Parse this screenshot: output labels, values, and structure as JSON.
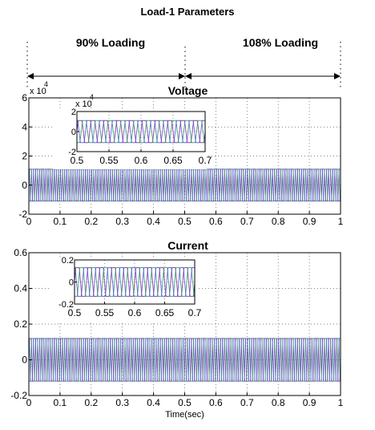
{
  "figure": {
    "title": "Load-1 Parameters",
    "region_left_label": "90% Loading",
    "region_right_label": "108% Loading"
  },
  "colors": {
    "phase_a": "#7a2e8f",
    "phase_b": "#2e9a6a",
    "phase_c": "#5050d8",
    "axis": "#000000",
    "grid": "#555555"
  },
  "chart_data": [
    {
      "type": "line",
      "title": "Voltage",
      "xlabel": "",
      "ylabel": "",
      "y_multiplier": "x 10",
      "y_multiplier_exp": "4",
      "xlim": [
        0,
        1
      ],
      "ylim": [
        -2,
        6
      ],
      "xticks": [
        "0",
        "0.1",
        "0.2",
        "0.3",
        "0.4",
        "0.5",
        "0.6",
        "0.7",
        "0.8",
        "0.9",
        "1"
      ],
      "yticks": [
        "-2",
        "0",
        "2",
        "4",
        "6"
      ],
      "grid": true,
      "series_amplitude": 1.1,
      "signal_center": 0,
      "phases": 3,
      "inset": {
        "y_multiplier": "x 10",
        "y_multiplier_exp": "4",
        "xlim": [
          0.5,
          0.7
        ],
        "ylim": [
          -2,
          2
        ],
        "xticks": [
          "0.5",
          "0.55",
          "0.6",
          "0.65",
          "0.7"
        ],
        "yticks": [
          "-2",
          "0",
          "2"
        ],
        "amplitude": 1.1
      }
    },
    {
      "type": "line",
      "title": "Current",
      "xlabel": "Time(sec)",
      "ylabel": "",
      "xlim": [
        0,
        1
      ],
      "ylim": [
        -0.2,
        0.6
      ],
      "xticks": [
        "0",
        "0.1",
        "0.2",
        "0.3",
        "0.4",
        "0.5",
        "0.6",
        "0.7",
        "0.8",
        "0.9",
        "1"
      ],
      "yticks": [
        "-0.2",
        "0",
        "0.2",
        "0.4",
        "0.6"
      ],
      "grid": true,
      "series_amplitude": 0.12,
      "signal_center": 0,
      "phases": 3,
      "inset": {
        "xlim": [
          0.5,
          0.7
        ],
        "ylim": [
          -0.2,
          0.2
        ],
        "xticks": [
          "0.5",
          "0.55",
          "0.6",
          "0.65",
          "0.7"
        ],
        "yticks": [
          "0.2",
          "0",
          "-0.2"
        ],
        "amplitude": 0.13
      }
    }
  ]
}
